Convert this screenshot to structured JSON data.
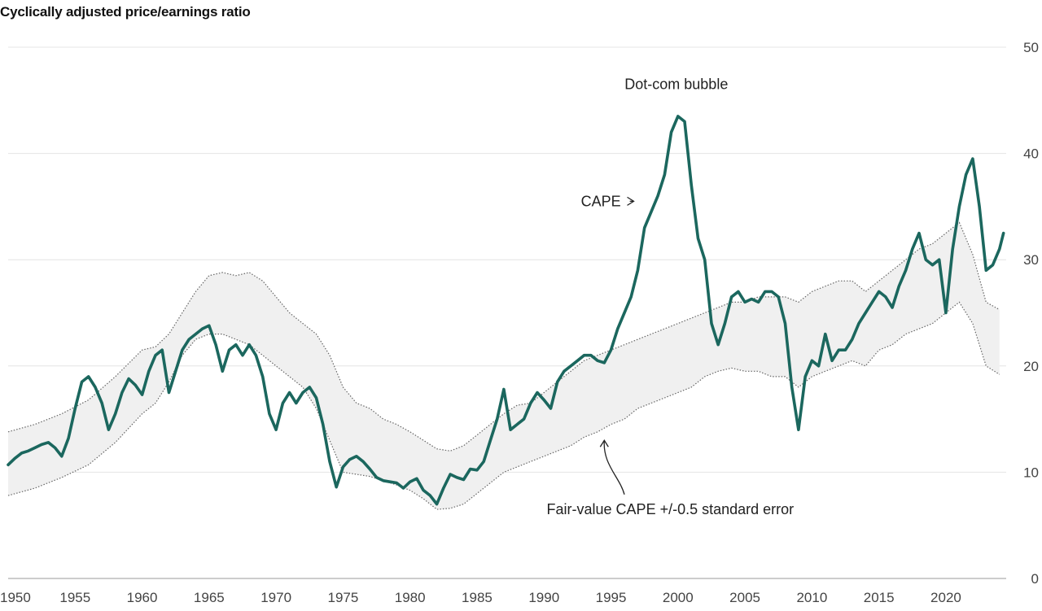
{
  "chart_data": {
    "type": "line",
    "title": "Cyclically adjusted price/earnings ratio",
    "xlabel": "",
    "ylabel": "",
    "xlim": [
      1950,
      2024.5
    ],
    "ylim": [
      0,
      50
    ],
    "x_ticks": [
      1950,
      1955,
      1960,
      1965,
      1970,
      1975,
      1980,
      1985,
      1990,
      1995,
      2000,
      2005,
      2010,
      2015,
      2020
    ],
    "y_ticks": [
      0,
      10,
      20,
      30,
      40,
      50
    ],
    "grid": "horizontal",
    "colors": {
      "cape": "#1b675e",
      "band_fill": "#f0f0f0",
      "band_edge": "#666666",
      "grid": "#e4e4e4"
    },
    "series": [
      {
        "name": "CAPE",
        "style": "line",
        "x": [
          1950.0,
          1950.5,
          1951.0,
          1951.5,
          1952.0,
          1952.5,
          1953.0,
          1953.5,
          1954.0,
          1954.5,
          1955.0,
          1955.5,
          1956.0,
          1956.5,
          1957.0,
          1957.5,
          1958.0,
          1958.5,
          1959.0,
          1959.5,
          1960.0,
          1960.5,
          1961.0,
          1961.5,
          1962.0,
          1962.5,
          1963.0,
          1963.5,
          1964.0,
          1964.5,
          1965.0,
          1965.5,
          1966.0,
          1966.5,
          1967.0,
          1967.5,
          1968.0,
          1968.5,
          1969.0,
          1969.5,
          1970.0,
          1970.5,
          1971.0,
          1971.5,
          1972.0,
          1972.5,
          1973.0,
          1973.5,
          1974.0,
          1974.5,
          1975.0,
          1975.5,
          1976.0,
          1976.5,
          1977.0,
          1977.5,
          1978.0,
          1978.5,
          1979.0,
          1979.5,
          1980.0,
          1980.5,
          1981.0,
          1981.5,
          1982.0,
          1982.5,
          1983.0,
          1983.5,
          1984.0,
          1984.5,
          1985.0,
          1985.5,
          1986.0,
          1986.5,
          1987.0,
          1987.5,
          1988.0,
          1988.5,
          1989.0,
          1989.5,
          1990.0,
          1990.5,
          1991.0,
          1991.5,
          1992.0,
          1992.5,
          1993.0,
          1993.5,
          1994.0,
          1994.5,
          1995.0,
          1995.5,
          1996.0,
          1996.5,
          1997.0,
          1997.5,
          1998.0,
          1998.5,
          1999.0,
          1999.5,
          2000.0,
          2000.5,
          2001.0,
          2001.5,
          2002.0,
          2002.5,
          2003.0,
          2003.5,
          2004.0,
          2004.5,
          2005.0,
          2005.5,
          2006.0,
          2006.5,
          2007.0,
          2007.5,
          2008.0,
          2008.5,
          2009.0,
          2009.5,
          2010.0,
          2010.5,
          2011.0,
          2011.5,
          2012.0,
          2012.5,
          2013.0,
          2013.5,
          2014.0,
          2014.5,
          2015.0,
          2015.5,
          2016.0,
          2016.5,
          2017.0,
          2017.5,
          2018.0,
          2018.5,
          2019.0,
          2019.5,
          2020.0,
          2020.5,
          2021.0,
          2021.5,
          2022.0,
          2022.5,
          2023.0,
          2023.5,
          2024.0,
          2024.3
        ],
        "values": [
          10.7,
          11.3,
          11.8,
          12.0,
          12.3,
          12.6,
          12.8,
          12.3,
          11.5,
          13.2,
          16.0,
          18.5,
          19.0,
          18.0,
          16.5,
          14.0,
          15.5,
          17.5,
          18.8,
          18.2,
          17.3,
          19.5,
          21.0,
          21.5,
          17.5,
          19.5,
          21.5,
          22.5,
          23.0,
          23.5,
          23.8,
          22.0,
          19.5,
          21.5,
          22.0,
          21.0,
          22.0,
          21.0,
          19.0,
          15.5,
          14.0,
          16.5,
          17.5,
          16.5,
          17.5,
          18.0,
          17.0,
          14.5,
          11.0,
          8.6,
          10.5,
          11.2,
          11.5,
          11.0,
          10.3,
          9.5,
          9.2,
          9.1,
          9.0,
          8.5,
          9.1,
          9.4,
          8.3,
          7.8,
          7.0,
          8.5,
          9.8,
          9.5,
          9.3,
          10.3,
          10.2,
          11.0,
          13.0,
          15.0,
          17.8,
          14.0,
          14.5,
          15.0,
          16.5,
          17.5,
          16.8,
          16.0,
          18.5,
          19.5,
          20.0,
          20.5,
          21.0,
          21.0,
          20.5,
          20.3,
          21.5,
          23.5,
          25.0,
          26.5,
          29.0,
          33.0,
          34.5,
          36.0,
          38.0,
          42.0,
          43.5,
          43.0,
          37.0,
          32.0,
          30.0,
          24.0,
          22.0,
          24.0,
          26.5,
          27.0,
          26.0,
          26.3,
          26.0,
          27.0,
          27.0,
          26.5,
          24.0,
          18.0,
          14.0,
          19.0,
          20.5,
          20.0,
          23.0,
          20.5,
          21.5,
          21.5,
          22.5,
          24.0,
          25.0,
          26.0,
          27.0,
          26.5,
          25.5,
          27.5,
          29.0,
          31.0,
          32.5,
          30.0,
          29.5,
          30.0,
          25.0,
          31.0,
          35.0,
          38.0,
          39.5,
          35.0,
          29.0,
          29.5,
          31.0,
          32.5
        ]
      },
      {
        "name": "Fair-value CAPE upper bound (+0.5 standard error)",
        "style": "dotted",
        "x": [
          1950,
          1952,
          1954,
          1956,
          1958,
          1960,
          1961,
          1962,
          1963,
          1964,
          1965,
          1966,
          1967,
          1968,
          1969,
          1970,
          1971,
          1972,
          1973,
          1974,
          1975,
          1976,
          1977,
          1978,
          1979,
          1980,
          1981,
          1982,
          1983,
          1984,
          1985,
          1986,
          1987,
          1988,
          1989,
          1990,
          1991,
          1992,
          1993,
          1994,
          1995,
          1996,
          1997,
          1998,
          1999,
          2000,
          2001,
          2002,
          2003,
          2004,
          2005,
          2006,
          2007,
          2008,
          2009,
          2010,
          2011,
          2012,
          2013,
          2014,
          2015,
          2016,
          2017,
          2018,
          2019,
          2020,
          2021,
          2022,
          2023,
          2024
        ],
        "values": [
          13.8,
          14.5,
          15.5,
          16.8,
          19.0,
          21.5,
          21.8,
          23.0,
          25.0,
          27.0,
          28.5,
          28.8,
          28.5,
          28.8,
          28.0,
          26.5,
          25.0,
          24.0,
          23.0,
          21.0,
          18.0,
          16.5,
          16.0,
          15.0,
          14.5,
          13.8,
          13.0,
          12.2,
          12.0,
          12.5,
          13.5,
          14.5,
          15.5,
          16.3,
          16.5,
          17.5,
          18.5,
          19.5,
          20.5,
          21.0,
          21.5,
          22.0,
          22.5,
          23.0,
          23.5,
          24.0,
          24.5,
          25.0,
          25.5,
          26.0,
          26.0,
          26.5,
          26.5,
          26.5,
          26.0,
          27.0,
          27.5,
          28.0,
          28.0,
          27.0,
          28.0,
          29.0,
          30.0,
          31.0,
          31.5,
          32.5,
          33.5,
          30.5,
          26.0,
          25.3
        ]
      },
      {
        "name": "Fair-value CAPE lower bound (-0.5 standard error)",
        "style": "dotted",
        "x": [
          1950,
          1952,
          1954,
          1956,
          1958,
          1960,
          1961,
          1962,
          1963,
          1964,
          1965,
          1966,
          1967,
          1968,
          1969,
          1970,
          1971,
          1972,
          1973,
          1974,
          1975,
          1976,
          1977,
          1978,
          1979,
          1980,
          1981,
          1982,
          1983,
          1984,
          1985,
          1986,
          1987,
          1988,
          1989,
          1990,
          1991,
          1992,
          1993,
          1994,
          1995,
          1996,
          1997,
          1998,
          1999,
          2000,
          2001,
          2002,
          2003,
          2004,
          2005,
          2006,
          2007,
          2008,
          2009,
          2010,
          2011,
          2012,
          2013,
          2014,
          2015,
          2016,
          2017,
          2018,
          2019,
          2020,
          2021,
          2022,
          2023,
          2024
        ],
        "values": [
          7.8,
          8.5,
          9.5,
          10.7,
          12.8,
          15.5,
          16.5,
          18.5,
          21.0,
          22.5,
          23.0,
          23.0,
          22.5,
          22.0,
          21.0,
          20.0,
          19.0,
          18.0,
          16.0,
          13.0,
          10.0,
          9.8,
          9.6,
          9.2,
          8.8,
          8.3,
          7.5,
          6.5,
          6.6,
          7.0,
          8.0,
          9.0,
          10.0,
          10.5,
          11.0,
          11.5,
          12.0,
          12.5,
          13.3,
          13.8,
          14.5,
          15.0,
          16.0,
          16.5,
          17.0,
          17.5,
          18.0,
          19.0,
          19.5,
          19.8,
          19.5,
          19.5,
          19.0,
          19.0,
          18.0,
          19.0,
          19.5,
          20.0,
          20.5,
          20.0,
          21.5,
          22.0,
          23.0,
          23.5,
          24.0,
          25.0,
          26.0,
          24.0,
          20.0,
          19.2
        ]
      }
    ],
    "annotations": [
      {
        "text": "Dot-com bubble",
        "x": 2000.0,
        "y": 46.5
      },
      {
        "text": "CAPE",
        "x": 1993.0,
        "y": 35.5
      },
      {
        "text": "Fair-value CAPE +/-0.5 standard error",
        "x": 1990.2,
        "y": 6.5
      }
    ]
  }
}
